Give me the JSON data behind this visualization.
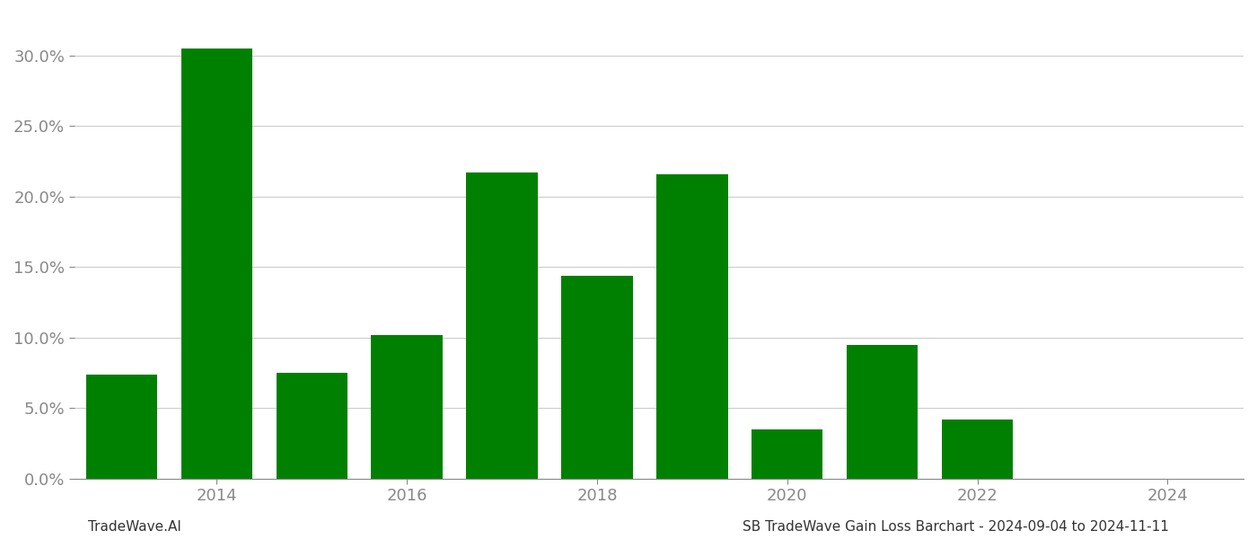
{
  "years": [
    2013,
    2014,
    2015,
    2016,
    2017,
    2018,
    2019,
    2020,
    2021,
    2022,
    2023
  ],
  "values": [
    0.074,
    0.305,
    0.075,
    0.102,
    0.217,
    0.144,
    0.216,
    0.035,
    0.095,
    0.042,
    0.0
  ],
  "bar_color": "#008000",
  "background_color": "#ffffff",
  "ylim": [
    0.0,
    0.33
  ],
  "yticks": [
    0.0,
    0.05,
    0.1,
    0.15,
    0.2,
    0.25,
    0.3
  ],
  "xticks": [
    2014,
    2016,
    2018,
    2020,
    2022,
    2024
  ],
  "xlabel_fontsize": 13,
  "ylabel_fontsize": 13,
  "tick_color": "#888888",
  "grid_color": "#cccccc",
  "footer_left": "TradeWave.AI",
  "footer_right": "SB TradeWave Gain Loss Barchart - 2024-09-04 to 2024-11-11",
  "footer_fontsize": 11,
  "bar_width": 0.75
}
